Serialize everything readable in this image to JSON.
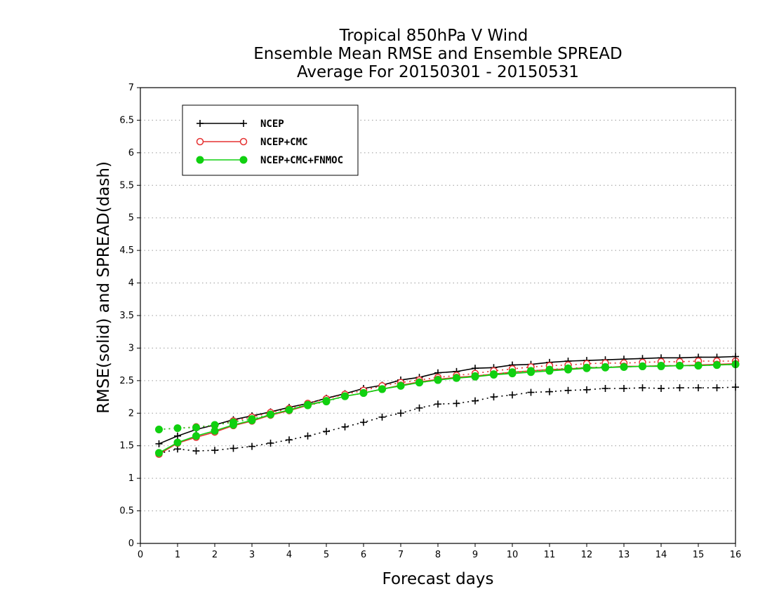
{
  "chart_data": {
    "type": "line",
    "title": [
      "Tropical 850hPa V Wind",
      "Ensemble Mean RMSE and Ensemble SPREAD",
      "Average For 20150301 - 20150531"
    ],
    "xlabel": "Forecast days",
    "ylabel": "RMSE(solid) and SPREAD(dash)",
    "xlim": [
      0,
      16
    ],
    "ylim": [
      0,
      7
    ],
    "xticks": [
      "0",
      "1",
      "2",
      "3",
      "4",
      "5",
      "6",
      "7",
      "8",
      "9",
      "10",
      "11",
      "12",
      "13",
      "14",
      "15",
      "16"
    ],
    "yticks": [
      "0",
      "0.5",
      "1",
      "1.5",
      "2",
      "2.5",
      "3",
      "3.5",
      "4",
      "4.5",
      "5",
      "5.5",
      "6",
      "6.5",
      "7"
    ],
    "grid": "horizontal dotted",
    "legend_position": "top-left",
    "x": [
      0.5,
      1,
      1.5,
      2,
      2.5,
      3,
      3.5,
      4,
      4.5,
      5,
      5.5,
      6,
      6.5,
      7,
      7.5,
      8,
      8.5,
      9,
      9.5,
      10,
      10.5,
      11,
      11.5,
      12,
      12.5,
      13,
      13.5,
      14,
      14.5,
      15,
      15.5,
      16
    ],
    "series": [
      {
        "name": "NCEP",
        "color": "#000000",
        "marker": "plus",
        "rmse": [
          1.53,
          1.65,
          1.75,
          1.82,
          1.9,
          1.96,
          2.02,
          2.09,
          2.15,
          2.23,
          2.3,
          2.38,
          2.43,
          2.51,
          2.55,
          2.62,
          2.64,
          2.69,
          2.7,
          2.74,
          2.75,
          2.78,
          2.8,
          2.81,
          2.82,
          2.83,
          2.84,
          2.85,
          2.85,
          2.86,
          2.86,
          2.87
        ],
        "spread": [
          1.38,
          1.45,
          1.42,
          1.43,
          1.46,
          1.49,
          1.54,
          1.59,
          1.65,
          1.72,
          1.79,
          1.86,
          1.94,
          2.0,
          2.08,
          2.14,
          2.15,
          2.19,
          2.25,
          2.28,
          2.32,
          2.33,
          2.35,
          2.36,
          2.38,
          2.38,
          2.39,
          2.38,
          2.39,
          2.39,
          2.39,
          2.4
        ]
      },
      {
        "name": "NCEP+CMC",
        "color": "#e53030",
        "marker": "open-circle",
        "rmse": [
          1.37,
          1.54,
          1.63,
          1.71,
          1.81,
          1.88,
          1.97,
          2.04,
          2.12,
          2.19,
          2.26,
          2.31,
          2.37,
          2.43,
          2.48,
          2.52,
          2.55,
          2.57,
          2.6,
          2.63,
          2.65,
          2.67,
          2.68,
          2.7,
          2.7,
          2.72,
          2.72,
          2.73,
          2.73,
          2.74,
          2.75,
          2.76
        ],
        "spread": [
          1.75,
          1.77,
          1.79,
          1.81,
          1.88,
          1.94,
          2.01,
          2.07,
          2.15,
          2.22,
          2.29,
          2.35,
          2.42,
          2.47,
          2.51,
          2.55,
          2.58,
          2.61,
          2.65,
          2.68,
          2.71,
          2.73,
          2.74,
          2.76,
          2.77,
          2.77,
          2.78,
          2.79,
          2.79,
          2.8,
          2.8,
          2.8
        ]
      },
      {
        "name": "NCEP+CMC+FNMOC",
        "color": "#10d010",
        "marker": "filled-circle",
        "rmse": [
          1.39,
          1.55,
          1.65,
          1.73,
          1.82,
          1.89,
          1.98,
          2.05,
          2.13,
          2.19,
          2.26,
          2.31,
          2.37,
          2.42,
          2.47,
          2.51,
          2.54,
          2.56,
          2.59,
          2.61,
          2.63,
          2.65,
          2.67,
          2.69,
          2.7,
          2.71,
          2.72,
          2.72,
          2.73,
          2.73,
          2.74,
          2.75
        ],
        "spread": [
          1.75,
          1.77,
          1.78,
          1.82,
          1.86,
          1.91,
          1.98,
          2.05,
          2.12,
          2.18,
          2.26,
          2.31,
          2.37,
          2.42,
          2.47,
          2.51,
          2.54,
          2.57,
          2.6,
          2.63,
          2.65,
          2.67,
          2.69,
          2.7,
          2.71,
          2.71,
          2.72,
          2.73,
          2.73,
          2.73,
          2.74,
          2.75
        ]
      }
    ]
  }
}
